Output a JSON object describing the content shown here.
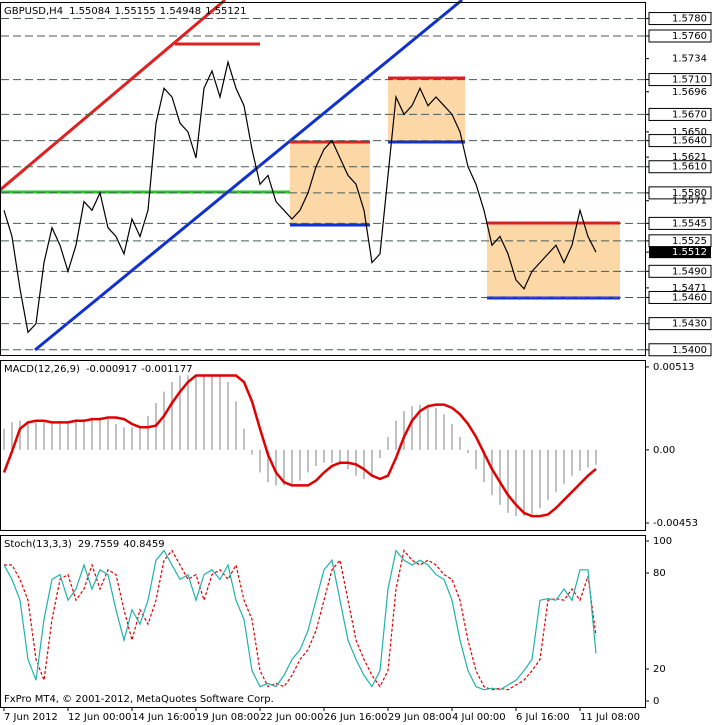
{
  "chart_data": [
    {
      "type": "line",
      "title": "GBPUSD,H4",
      "ohlc": [
        1.55084,
        1.55155,
        1.54948,
        1.55121
      ],
      "color": "#000000",
      "values": [
        1.556,
        1.553,
        1.547,
        1.542,
        1.543,
        1.55,
        1.554,
        1.552,
        1.549,
        1.552,
        1.557,
        1.556,
        1.558,
        1.554,
        1.553,
        1.551,
        1.555,
        1.553,
        1.556,
        1.566,
        1.57,
        1.569,
        1.566,
        1.565,
        1.562,
        1.57,
        1.572,
        1.569,
        1.573,
        1.57,
        1.568,
        1.563,
        1.559,
        1.56,
        1.557,
        1.556,
        1.555,
        1.556,
        1.558,
        1.561,
        1.563,
        1.564,
        1.562,
        1.56,
        1.559,
        1.556,
        1.55,
        1.551,
        1.56,
        1.569,
        1.567,
        1.568,
        1.57,
        1.568,
        1.569,
        1.568,
        1.567,
        1.565,
        1.561,
        1.559,
        1.556,
        1.552,
        1.553,
        1.551,
        1.548,
        1.547,
        1.549,
        1.55,
        1.551,
        1.552,
        1.55,
        1.552,
        1.556,
        1.553,
        1.5512,
        null
      ],
      "ylim": [
        1.5394,
        1.5799
      ],
      "yticks": [
        {
          "value": 1.578,
          "label": "1.5780",
          "grid": true
        },
        {
          "value": 1.576,
          "label": "1.5760",
          "grid": true
        },
        {
          "value": 1.5734,
          "label": "1.5734"
        },
        {
          "value": 1.571,
          "label": "1.5710",
          "grid": true
        },
        {
          "value": 1.5696,
          "label": "1.5696"
        },
        {
          "value": 1.567,
          "label": "1.5670",
          "grid": true
        },
        {
          "value": 1.565,
          "label": "1.5650"
        },
        {
          "value": 1.564,
          "label": "1.5640",
          "grid": true
        },
        {
          "value": 1.5621,
          "label": "1.5621"
        },
        {
          "value": 1.561,
          "label": "1.5610",
          "grid": true
        },
        {
          "value": 1.558,
          "label": "1.5580",
          "grid": true
        },
        {
          "value": 1.5571,
          "label": "1.5571"
        },
        {
          "value": 1.5545,
          "label": "1.5545",
          "grid": true
        },
        {
          "value": 1.5525,
          "label": "1.5525",
          "grid": true
        },
        {
          "value": 1.5512,
          "label": "1.5512",
          "current": true
        },
        {
          "value": 1.549,
          "label": "1.5490",
          "grid": true
        },
        {
          "value": 1.5471,
          "label": "1.5471"
        },
        {
          "value": 1.546,
          "label": "1.5460",
          "grid": true
        },
        {
          "value": 1.543,
          "label": "1.5430",
          "grid": true
        },
        {
          "value": 1.54,
          "label": "1.5400",
          "grid": true
        }
      ]
    },
    {
      "type": "macd",
      "title": "MACD(12,26,9)",
      "readings": [
        -0.000917,
        -0.001177
      ],
      "color": "#c0c0c0",
      "signal_color": "#e00000",
      "values": [
        0.0013,
        0.0017,
        0.0018,
        0.0018,
        0.0017,
        0.0017,
        0.0017,
        0.0018,
        0.0018,
        0.0019,
        0.0019,
        0.002,
        0.002,
        0.0019,
        0.0016,
        0.0014,
        0.0014,
        0.0015,
        0.0021,
        0.0029,
        0.0036,
        0.0042,
        0.0046,
        0.0046,
        0.0046,
        0.0046,
        0.0046,
        0.0046,
        0.0042,
        0.003,
        0.0013,
        -0.0003,
        -0.0014,
        -0.002,
        -0.0022,
        -0.0022,
        -0.0022,
        -0.0019,
        -0.0014,
        -0.001,
        -0.0008,
        -0.0008,
        -0.0009,
        -0.0012,
        -0.0016,
        -0.0018,
        -0.0016,
        -0.0005,
        0.0008,
        0.0018,
        0.0024,
        0.0027,
        0.0028,
        0.0028,
        0.0026,
        0.0022,
        0.0016,
        0.0008,
        -0.0002,
        -0.0012,
        -0.002,
        -0.0028,
        -0.0034,
        -0.0039,
        -0.0041,
        -0.0041,
        -0.004,
        -0.0036,
        -0.0031,
        -0.0026,
        -0.0021,
        -0.0016,
        -0.0013,
        -0.0011,
        -0.000917,
        null
      ],
      "signal": [
        -0.0014,
        -0.0001,
        0.0013,
        0.0017,
        0.0018,
        0.0018,
        0.0017,
        0.0017,
        0.0017,
        0.0018,
        0.0018,
        0.0019,
        0.0019,
        0.002,
        0.002,
        0.0019,
        0.0016,
        0.0014,
        0.0014,
        0.0015,
        0.0021,
        0.0029,
        0.0036,
        0.0042,
        0.0046,
        0.0046,
        0.0046,
        0.0046,
        0.0046,
        0.0046,
        0.0042,
        0.003,
        0.0013,
        -0.0003,
        -0.0014,
        -0.002,
        -0.0022,
        -0.0022,
        -0.0022,
        -0.0019,
        -0.0014,
        -0.001,
        -0.0008,
        -0.0008,
        -0.0009,
        -0.0012,
        -0.0016,
        -0.0018,
        -0.0016,
        -0.0005,
        0.0008,
        0.0018,
        0.0024,
        0.0027,
        0.0028,
        0.0028,
        0.0026,
        0.0022,
        0.0016,
        0.0008,
        -0.0002,
        -0.0012,
        -0.002,
        -0.0028,
        -0.0034,
        -0.0039,
        -0.0041,
        -0.0041,
        -0.004,
        -0.0036,
        -0.0031,
        -0.0026,
        -0.0021,
        -0.0016,
        -0.001177,
        null
      ],
      "ylim": [
        -0.00496,
        0.00556
      ],
      "yticks": [
        {
          "value": 0.00513,
          "label": "0.00513"
        },
        {
          "value": 0,
          "label": "0.00"
        },
        {
          "value": -0.00453,
          "label": "-0.00453"
        }
      ]
    },
    {
      "type": "stoch",
      "title": "Stoch(13,3,3)",
      "readings": [
        29.7559,
        40.8459
      ],
      "color": "#20b2aa",
      "signal_color": "#e00000",
      "values": [
        85,
        76,
        63,
        26,
        13,
        51,
        76,
        79,
        63,
        70,
        85,
        70,
        82,
        79,
        57,
        38,
        57,
        48,
        63,
        88,
        94,
        85,
        76,
        79,
        63,
        79,
        82,
        76,
        85,
        63,
        51,
        19,
        9,
        11,
        9,
        16,
        26,
        32,
        44,
        63,
        82,
        88,
        63,
        38,
        26,
        16,
        9,
        19,
        70,
        94,
        88,
        85,
        88,
        85,
        79,
        76,
        63,
        38,
        19,
        9,
        7,
        8,
        7,
        10,
        13,
        19,
        26,
        63,
        64,
        63,
        70,
        63,
        82,
        82,
        29.7559,
        null
      ],
      "signal": [
        85,
        85,
        76,
        63,
        26,
        13,
        51,
        76,
        79,
        63,
        70,
        85,
        70,
        82,
        79,
        57,
        38,
        57,
        48,
        63,
        88,
        94,
        85,
        76,
        79,
        63,
        79,
        82,
        76,
        85,
        63,
        51,
        19,
        9,
        11,
        9,
        16,
        26,
        32,
        44,
        63,
        82,
        88,
        63,
        38,
        26,
        16,
        9,
        19,
        70,
        94,
        88,
        85,
        88,
        85,
        79,
        76,
        63,
        38,
        19,
        9,
        7,
        8,
        7,
        10,
        13,
        19,
        26,
        63,
        64,
        63,
        70,
        63,
        78,
        40.8459,
        null
      ],
      "ylim": [
        -3.75,
        103.75
      ],
      "yticks": [
        100,
        80,
        20,
        0
      ],
      "footer": "FxPro MT4, © 2001-2012, MetaQuotes Software Corp.",
      "categories": [
        "7 Jun 2012",
        null,
        null,
        null,
        null,
        null,
        null,
        null,
        "12 Jun 00:00",
        null,
        null,
        null,
        null,
        null,
        null,
        null,
        "14 Jun 16:00",
        null,
        null,
        null,
        null,
        null,
        null,
        null,
        "19 Jun 08:00",
        null,
        null,
        null,
        null,
        null,
        null,
        null,
        "22 Jun 00:00",
        null,
        null,
        null,
        null,
        null,
        null,
        null,
        "26 Jun 16:00",
        null,
        null,
        null,
        null,
        null,
        null,
        null,
        "29 Jun 08:00",
        null,
        null,
        null,
        null,
        null,
        null,
        null,
        "4 Jul 00:00",
        null,
        null,
        null,
        null,
        null,
        null,
        null,
        "6 Jul 16:00",
        null,
        null,
        null,
        null,
        null,
        null,
        null,
        "11 Jul 08:00",
        null,
        null,
        null
      ]
    }
  ]
}
